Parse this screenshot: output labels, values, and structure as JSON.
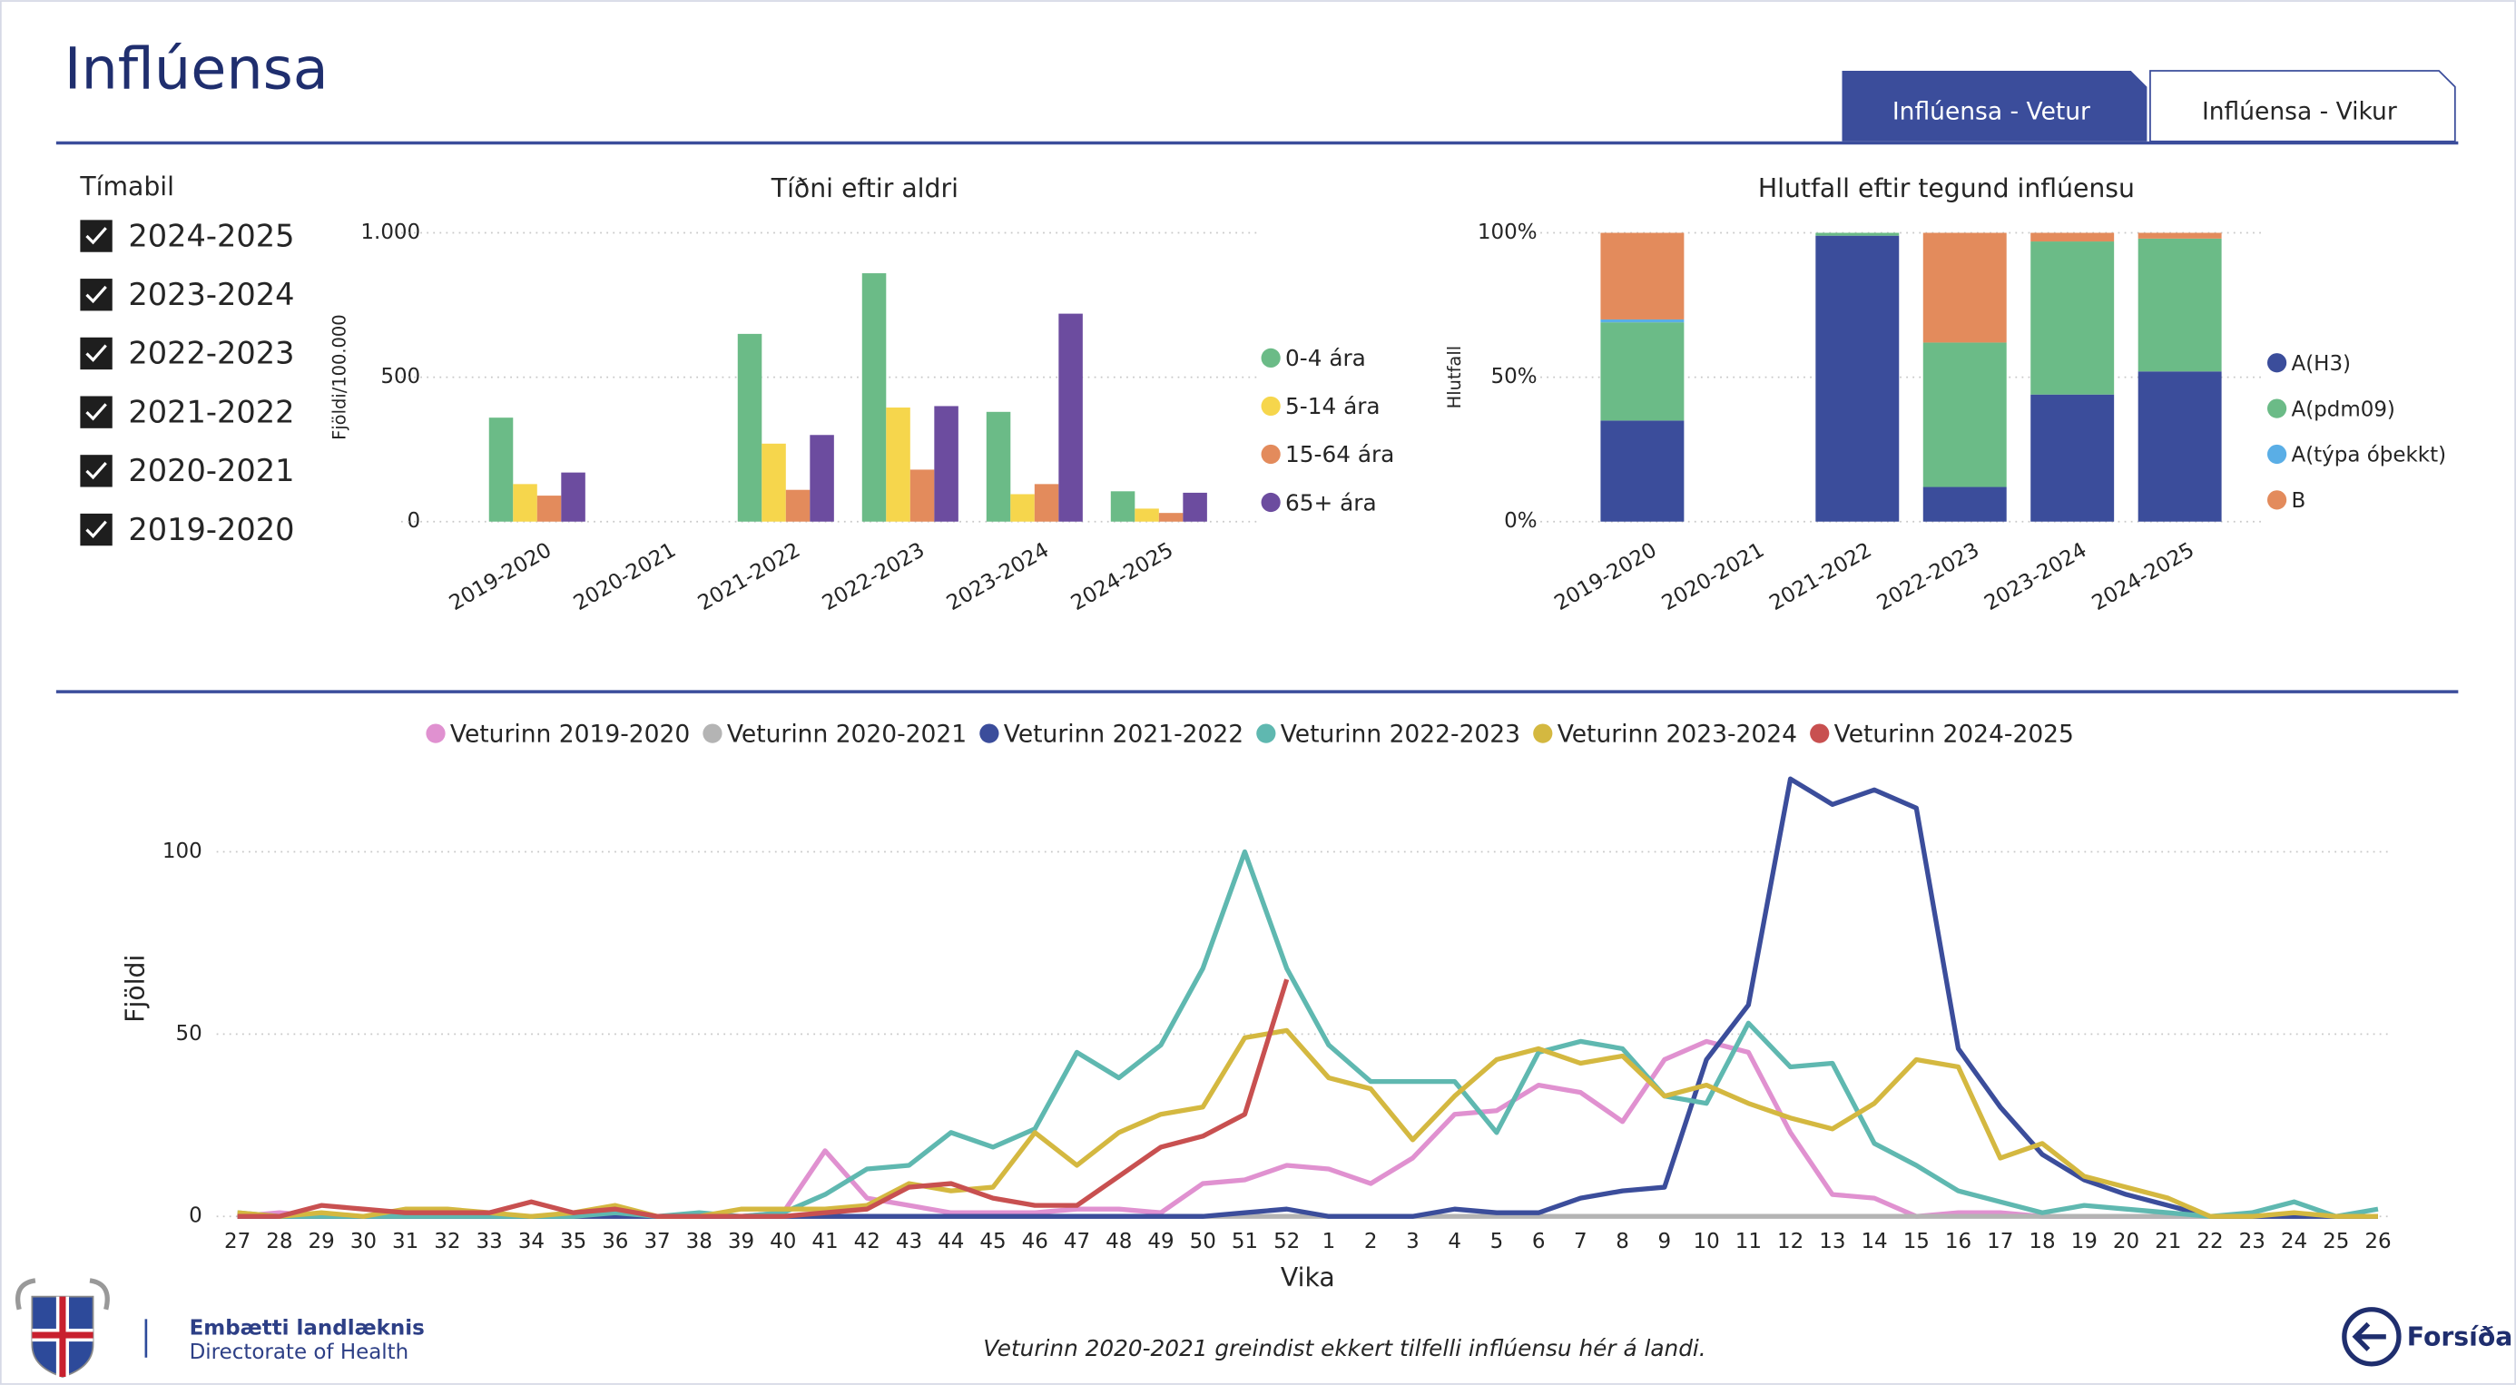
{
  "header": {
    "title": "Inflúensa",
    "tabs": [
      "Inflúensa - Vetur",
      "Inflúensa - Vikur"
    ]
  },
  "slicer": {
    "title": "Tímabil",
    "items": [
      "2024-2025",
      "2023-2024",
      "2022-2023",
      "2021-2022",
      "2020-2021",
      "2019-2020"
    ]
  },
  "chart_data": [
    {
      "type": "bar",
      "title": "Tíðni eftir aldri",
      "y_label": "Fjöldi/100.000",
      "categories": [
        "2019-2020",
        "2020-2021",
        "2021-2022",
        "2022-2023",
        "2023-2024",
        "2024-2025"
      ],
      "series": [
        {
          "name": "0-4 ára",
          "color": "#6bbb87",
          "values": [
            360,
            0,
            650,
            860,
            380,
            105
          ]
        },
        {
          "name": "5-14 ára",
          "color": "#f6d64c",
          "values": [
            130,
            0,
            270,
            395,
            95,
            45
          ]
        },
        {
          "name": "15-64 ára",
          "color": "#e38b5c",
          "values": [
            90,
            0,
            110,
            180,
            130,
            30
          ]
        },
        {
          "name": "65+ ára",
          "color": "#6c4c9f",
          "values": [
            170,
            0,
            300,
            400,
            720,
            100
          ]
        }
      ],
      "ylim": [
        0,
        1000
      ],
      "yticks": [
        0,
        500,
        {
          "value": 1000,
          "label": "1.000"
        }
      ],
      "grid": true,
      "legend": "right"
    },
    {
      "type": "bar",
      "stacked": true,
      "title": "Hlutfall eftir tegund inflúensu",
      "y_label": "Hlutfall",
      "categories": [
        "2019-2020",
        "2020-2021",
        "2021-2022",
        "2022-2023",
        "2023-2024",
        "2024-2025"
      ],
      "series": [
        {
          "name": "A(H3)",
          "color": "#3b4d9b",
          "values": [
            35,
            0,
            99,
            12,
            44,
            52
          ]
        },
        {
          "name": "A(pdm09)",
          "color": "#6bbb87",
          "values": [
            34,
            0,
            1,
            50,
            53,
            46
          ]
        },
        {
          "name": "A(týpa óþekkt)",
          "color": "#5aaee6",
          "values": [
            1,
            0,
            0,
            0,
            0,
            0
          ]
        },
        {
          "name": "B",
          "color": "#e38b5c",
          "values": [
            30,
            0,
            0,
            38,
            3,
            2
          ]
        }
      ],
      "ylim": [
        0,
        100
      ],
      "yticks": [
        {
          "value": 0,
          "label": "0%"
        },
        {
          "value": 50,
          "label": "50%"
        },
        {
          "value": 100,
          "label": "100%"
        }
      ],
      "grid": true,
      "legend": "right"
    },
    {
      "type": "line",
      "x_label": "Vika",
      "y_label": "Fjöldi",
      "categories": [
        "27",
        "28",
        "29",
        "30",
        "31",
        "32",
        "33",
        "34",
        "35",
        "36",
        "37",
        "38",
        "39",
        "40",
        "41",
        "42",
        "43",
        "44",
        "45",
        "46",
        "47",
        "48",
        "49",
        "50",
        "51",
        "52",
        "1",
        "2",
        "3",
        "4",
        "5",
        "6",
        "7",
        "8",
        "9",
        "10",
        "11",
        "12",
        "13",
        "14",
        "15",
        "16",
        "17",
        "18",
        "19",
        "20",
        "21",
        "22",
        "23",
        "24",
        "25",
        "26"
      ],
      "series": [
        {
          "name": "Veturinn 2019-2020",
          "color": "#e091d0",
          "values": [
            0,
            1,
            0,
            0,
            0,
            0,
            0,
            0,
            0,
            0,
            0,
            0,
            0,
            1,
            18,
            5,
            3,
            1,
            1,
            1,
            2,
            2,
            1,
            9,
            10,
            14,
            13,
            9,
            16,
            28,
            29,
            36,
            34,
            26,
            43,
            48,
            45,
            23,
            6,
            5,
            0,
            1,
            1,
            0,
            0,
            0,
            0,
            0,
            0,
            0,
            0,
            0
          ]
        },
        {
          "name": "Veturinn 2020-2021",
          "color": "#b4b4b4",
          "values": [
            0,
            0,
            0,
            0,
            0,
            0,
            0,
            0,
            0,
            0,
            0,
            0,
            0,
            0,
            0,
            0,
            0,
            0,
            0,
            0,
            0,
            0,
            0,
            0,
            0,
            0,
            0,
            0,
            0,
            0,
            0,
            0,
            0,
            0,
            0,
            0,
            0,
            0,
            0,
            0,
            0,
            0,
            0,
            0,
            0,
            0,
            0,
            0,
            0,
            0,
            0,
            0
          ]
        },
        {
          "name": "Veturinn 2021-2022",
          "color": "#3b4d9b",
          "values": [
            0,
            0,
            0,
            0,
            0,
            0,
            0,
            0,
            0,
            0,
            0,
            0,
            0,
            0,
            0,
            0,
            0,
            0,
            0,
            0,
            0,
            0,
            0,
            0,
            1,
            2,
            0,
            0,
            0,
            2,
            1,
            1,
            5,
            7,
            8,
            43,
            58,
            120,
            113,
            117,
            112,
            46,
            30,
            17,
            10,
            6,
            3,
            0,
            0,
            0,
            0,
            0
          ]
        },
        {
          "name": "Veturinn 2022-2023",
          "color": "#5fb8b0",
          "values": [
            1,
            0,
            0,
            0,
            0,
            0,
            0,
            0,
            0,
            1,
            0,
            1,
            0,
            1,
            6,
            13,
            14,
            23,
            19,
            24,
            45,
            38,
            47,
            68,
            100,
            68,
            47,
            37,
            37,
            37,
            23,
            45,
            48,
            46,
            33,
            31,
            53,
            41,
            42,
            20,
            14,
            7,
            4,
            1,
            3,
            2,
            1,
            0,
            1,
            4,
            0,
            2
          ]
        },
        {
          "name": "Veturinn 2023-2024",
          "color": "#d4b840",
          "values": [
            1,
            0,
            1,
            0,
            2,
            2,
            1,
            0,
            1,
            3,
            0,
            0,
            2,
            2,
            2,
            3,
            9,
            7,
            8,
            23,
            14,
            23,
            28,
            30,
            49,
            51,
            38,
            35,
            21,
            33,
            43,
            46,
            42,
            44,
            33,
            36,
            31,
            27,
            24,
            31,
            43,
            41,
            16,
            20,
            11,
            8,
            5,
            0,
            0,
            1,
            0,
            0
          ]
        },
        {
          "name": "Veturinn 2024-2025",
          "color": "#c85050",
          "values": [
            0,
            0,
            3,
            2,
            1,
            1,
            1,
            4,
            1,
            2,
            0,
            0,
            0,
            0,
            1,
            2,
            8,
            9,
            5,
            3,
            3,
            11,
            19,
            22,
            28,
            65,
            null,
            null,
            null,
            null,
            null,
            null,
            null,
            null,
            null,
            null,
            null,
            null,
            null,
            null,
            null,
            null,
            null,
            null,
            null,
            null,
            null,
            null,
            null,
            null,
            null,
            null
          ]
        }
      ],
      "ylim": [
        0,
        125
      ],
      "yticks": [
        0,
        50,
        100
      ],
      "grid": true,
      "legend": "top"
    }
  ],
  "footer": {
    "org": "Embætti landlæknis",
    "org_en": "Directorate of Health",
    "note": "Veturinn 2020-2021 greindist ekkert tilfelli inflúensu hér á landi.",
    "home": "Forsíða"
  }
}
